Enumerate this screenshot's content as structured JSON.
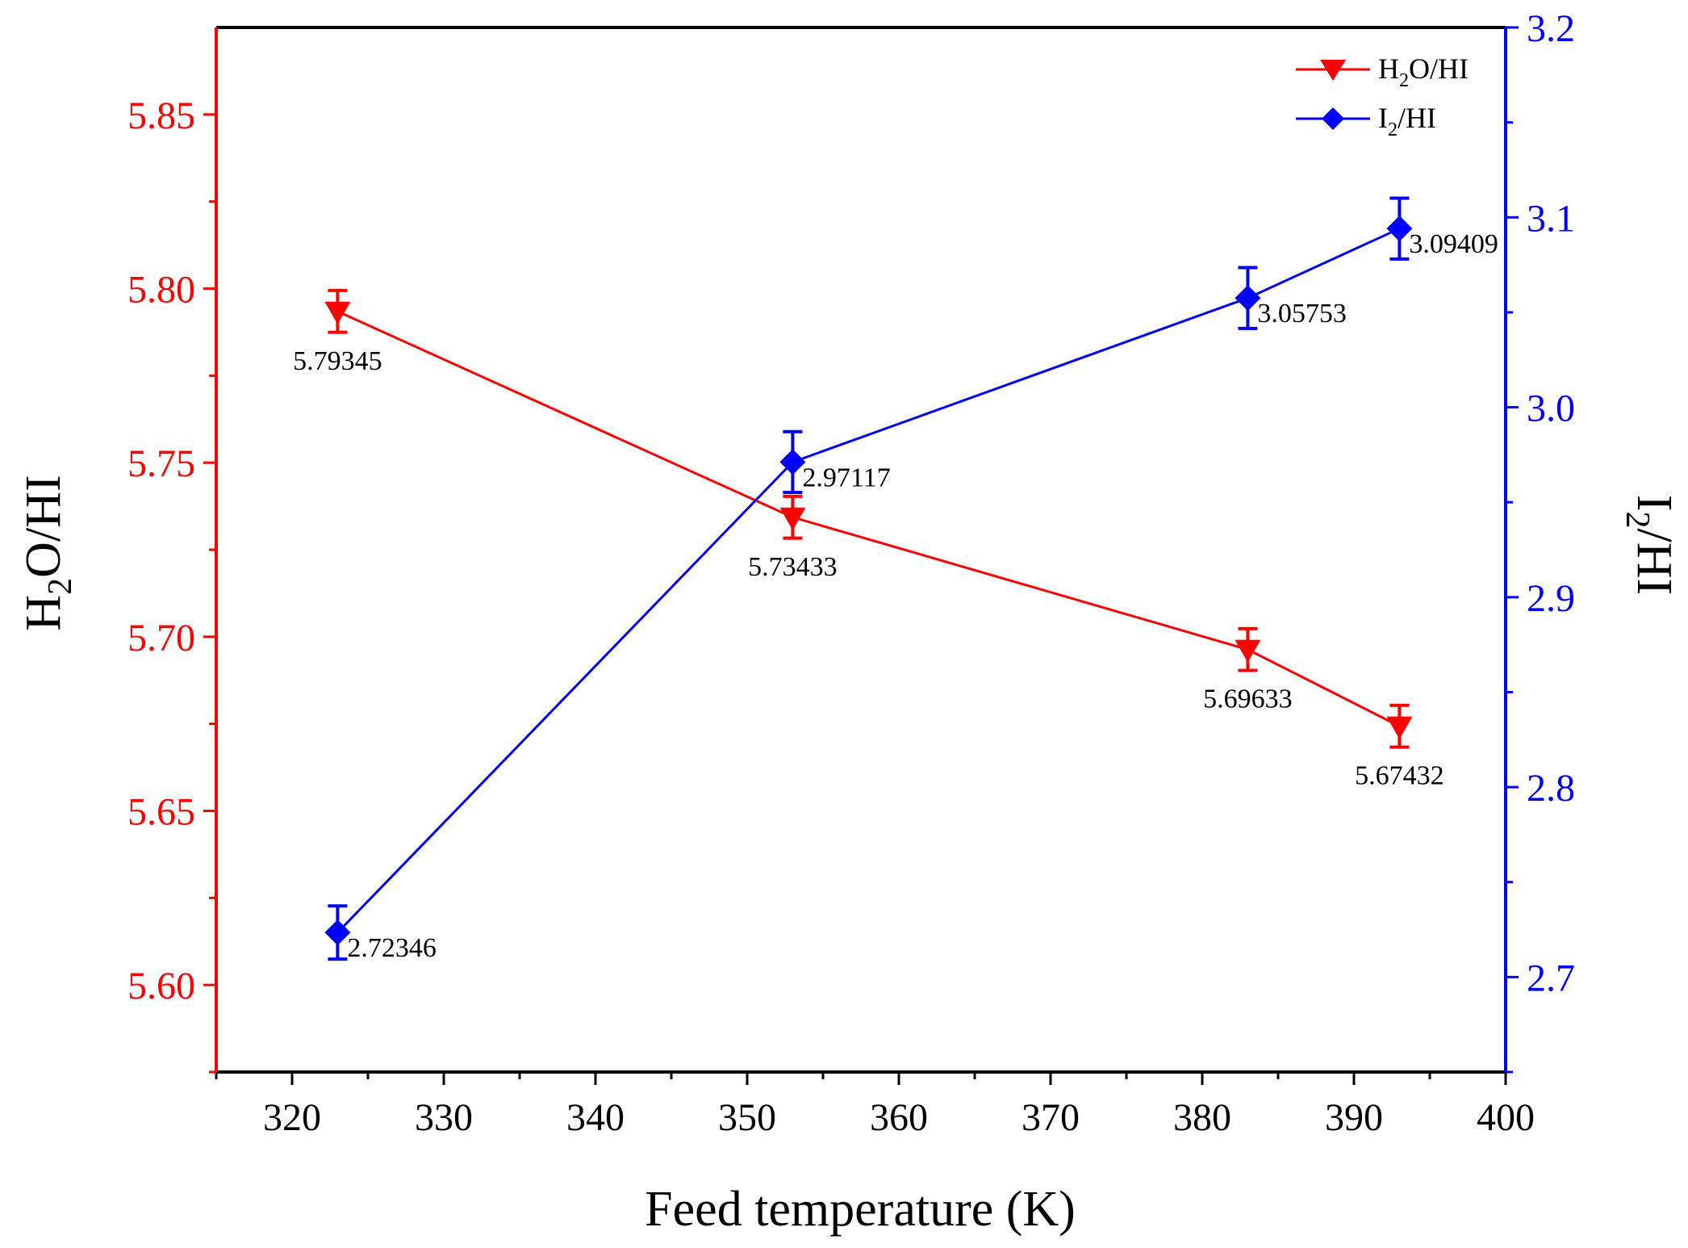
{
  "chart_data": {
    "type": "line",
    "xlabel": "Feed temperature (K)",
    "xlim": [
      315,
      400
    ],
    "x_ticks": [
      320,
      330,
      340,
      350,
      360,
      370,
      380,
      390,
      400
    ],
    "x_tick_labels": [
      "320",
      "330",
      "340",
      "350",
      "360",
      "370",
      "380",
      "390",
      "400"
    ],
    "left_axis": {
      "label_main": "H",
      "label_sub": "2",
      "label_rest": "O/HI",
      "color": "#ff0000",
      "ylim": [
        5.575,
        5.875
      ],
      "ticks": [
        5.6,
        5.65,
        5.7,
        5.75,
        5.8,
        5.85
      ],
      "tick_labels": [
        "5.60",
        "5.65",
        "5.70",
        "5.75",
        "5.80",
        "5.85"
      ]
    },
    "right_axis": {
      "label_main": "I",
      "label_sub": "2",
      "label_rest": "/HI",
      "color": "#0000ff",
      "ylim": [
        2.65,
        3.2
      ],
      "ticks": [
        2.7,
        2.8,
        2.9,
        3.0,
        3.1,
        3.2
      ],
      "tick_labels": [
        "2.7",
        "2.8",
        "2.9",
        "3.0",
        "3.1",
        "3.2"
      ]
    },
    "series": [
      {
        "name": "H2O/HI",
        "legend_main": "H",
        "legend_sub": "2",
        "legend_rest": "O/HI",
        "axis": "left",
        "marker": "triangle-down",
        "color": "#ff0000",
        "x": [
          323,
          353,
          383,
          393
        ],
        "y": [
          5.79345,
          5.73433,
          5.69633,
          5.67432
        ],
        "err": [
          0.006,
          0.006,
          0.006,
          0.006
        ],
        "labels": [
          "5.79345",
          "5.73433",
          "5.69633",
          "5.67432"
        ]
      },
      {
        "name": "I2/HI",
        "legend_main": "I",
        "legend_sub": "2",
        "legend_rest": "/HI",
        "axis": "right",
        "marker": "diamond",
        "color": "#0000ff",
        "x": [
          323,
          353,
          383,
          393
        ],
        "y": [
          2.72346,
          2.97117,
          3.05753,
          3.09409
        ],
        "err": [
          0.014,
          0.016,
          0.016,
          0.016
        ],
        "labels": [
          "2.72346",
          "2.97117",
          "3.05753",
          "3.09409"
        ]
      }
    ],
    "legend_position": "top-right"
  }
}
